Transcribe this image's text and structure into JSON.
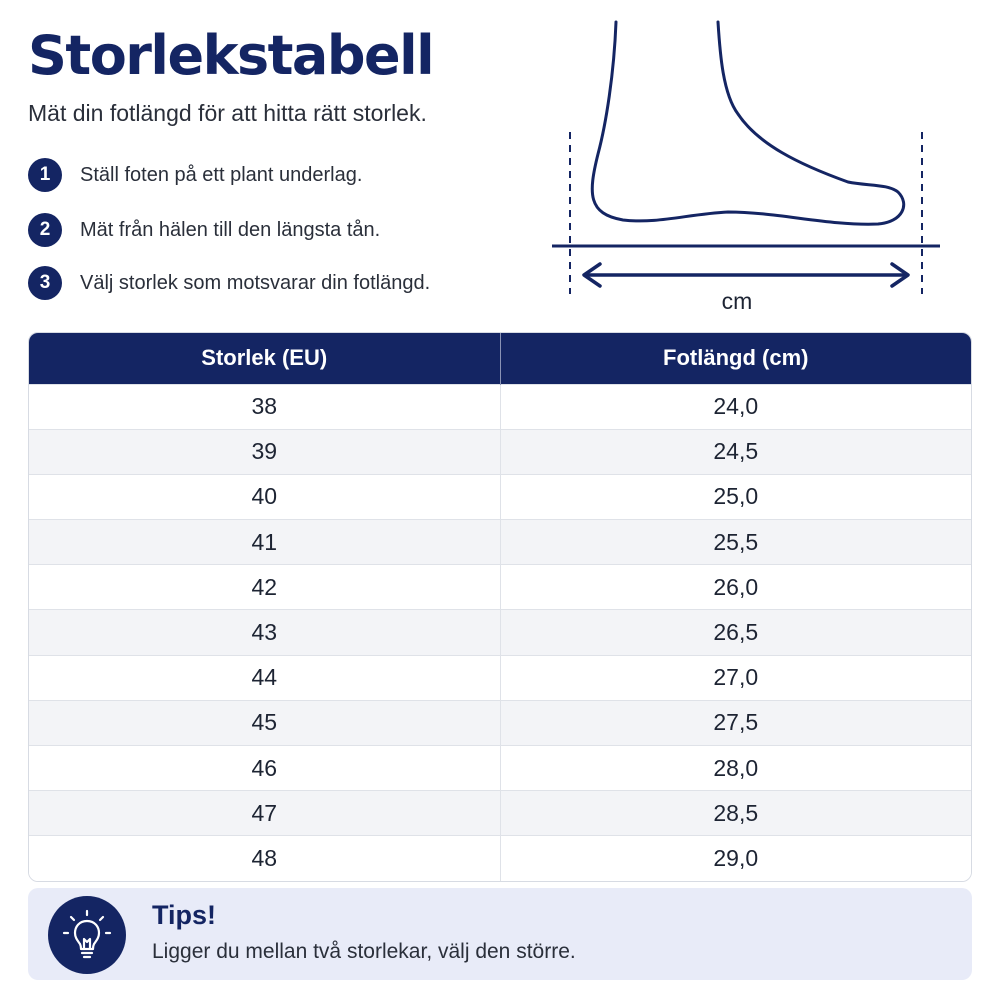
{
  "title": "Storlekstabell",
  "subtitle": "Mät din fotlängd för att hitta rätt storlek.",
  "steps": [
    {
      "num": "1",
      "text": "Ställ foten på ett plant underlag."
    },
    {
      "num": "2",
      "text": "Mät från hälen till den längsta tån."
    },
    {
      "num": "3",
      "text": "Välj storlek som motsvarar din fotlängd."
    }
  ],
  "illustration": {
    "icon": "foot-measurement-icon",
    "unit_label": "cm"
  },
  "table": {
    "headers": [
      "Storlek (EU)",
      "Fotlängd (cm)"
    ],
    "rows": [
      [
        "38",
        "24,0"
      ],
      [
        "39",
        "24,5"
      ],
      [
        "40",
        "25,0"
      ],
      [
        "41",
        "25,5"
      ],
      [
        "42",
        "26,0"
      ],
      [
        "43",
        "26,5"
      ],
      [
        "44",
        "27,0"
      ],
      [
        "45",
        "27,5"
      ],
      [
        "46",
        "28,0"
      ],
      [
        "47",
        "28,5"
      ],
      [
        "48",
        "29,0"
      ]
    ]
  },
  "tips": {
    "icon": "lightbulb-icon",
    "title": "Tips!",
    "text": "Ligger du mellan två storlekar, välj den större."
  },
  "colors": {
    "navy": "#142563",
    "row_alt": "#f3f4f7",
    "tips_bg": "#e8ebf8"
  }
}
